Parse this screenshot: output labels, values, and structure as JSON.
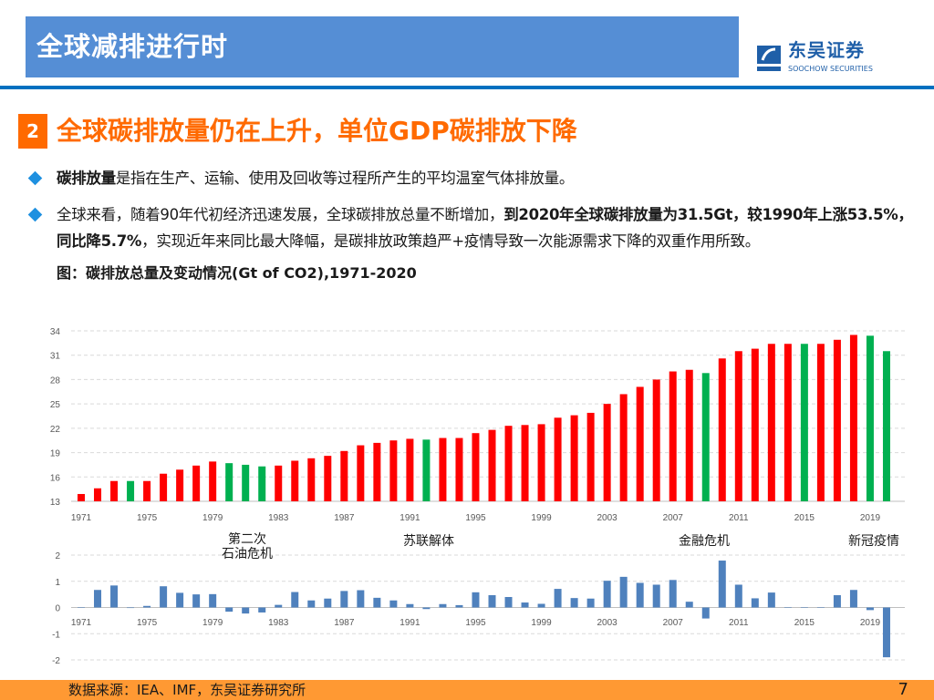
{
  "header": {
    "title": "全球减排进行时",
    "logo_cn": "东吴证券",
    "logo_en": "SOOCHOW SECURITIES"
  },
  "section": {
    "number": "2",
    "title": "全球碳排放量仍在上升，单位GDP碳排放下降"
  },
  "bullets": [
    {
      "segments": [
        {
          "text": "碳排放量",
          "bold": true
        },
        {
          "text": "是指在生产、运输、使用及回收等过程所产生的平均温室气体排放量。",
          "bold": false
        }
      ]
    },
    {
      "segments": [
        {
          "text": "全球来看，随着90年代初经济迅速发展，全球碳排放总量不断增加，",
          "bold": false
        },
        {
          "text": "到2020年全球碳排放量为31.5Gt，较1990年上涨53.5%，同比降5.7%",
          "bold": true
        },
        {
          "text": "，实现近年来同比最大降幅，是碳排放政策趋严+疫情导致一次能源需求下降的双重作用所致。",
          "bold": false
        }
      ]
    }
  ],
  "caption": "图：碳排放总量及变动情况(Gt of CO2),1971-2020",
  "annotations": [
    {
      "text": "第二次\n石油危机",
      "year": 1980
    },
    {
      "text": "苏联解体",
      "year": 1991
    },
    {
      "text": "金融危机",
      "year": 2009
    },
    {
      "text": "新冠疫情",
      "year": 2019
    }
  ],
  "footer": {
    "source": "数据来源：IEA、IMF，东吴证券研究所",
    "page": "7"
  },
  "colors": {
    "increase": "#ff0000",
    "decrease": "#00b050",
    "change": "#4f81bd",
    "header": "#558ed5",
    "accent": "#ff6a00",
    "footer": "#ff9933"
  },
  "chart_data": [
    {
      "type": "bar",
      "title": "",
      "ylim": [
        13,
        34
      ],
      "yticks": [
        13,
        16,
        19,
        22,
        25,
        28,
        31,
        34
      ],
      "xtick_labels": [
        "1971",
        "1975",
        "1979",
        "1983",
        "1987",
        "1991",
        "1995",
        "1999",
        "2003",
        "2007",
        "2011",
        "2015",
        "2019"
      ],
      "grid": true,
      "x": [
        1971,
        1972,
        1973,
        1974,
        1975,
        1976,
        1977,
        1978,
        1979,
        1980,
        1981,
        1982,
        1983,
        1984,
        1985,
        1986,
        1987,
        1988,
        1989,
        1990,
        1991,
        1992,
        1993,
        1994,
        1995,
        1996,
        1997,
        1998,
        1999,
        2000,
        2001,
        2002,
        2003,
        2004,
        2005,
        2006,
        2007,
        2008,
        2009,
        2010,
        2011,
        2012,
        2013,
        2014,
        2015,
        2016,
        2017,
        2018,
        2019,
        2020
      ],
      "values": [
        13.9,
        14.6,
        15.5,
        15.5,
        15.5,
        16.4,
        16.9,
        17.4,
        17.9,
        17.7,
        17.5,
        17.3,
        17.4,
        18.0,
        18.3,
        18.6,
        19.2,
        19.9,
        20.2,
        20.5,
        20.7,
        20.6,
        20.8,
        20.8,
        21.4,
        21.8,
        22.3,
        22.4,
        22.5,
        23.3,
        23.6,
        23.9,
        25.0,
        26.2,
        27.1,
        28.0,
        29.0,
        29.2,
        28.8,
        30.6,
        31.5,
        31.8,
        32.4,
        32.4,
        32.4,
        32.4,
        32.9,
        33.5,
        33.4,
        31.5
      ],
      "decline_years": [
        1974,
        1980,
        1981,
        1982,
        1992,
        2009,
        2015,
        2019,
        2020
      ]
    },
    {
      "type": "bar",
      "title": "",
      "ylim": [
        -2,
        2
      ],
      "yticks": [
        -2,
        -1,
        0,
        1,
        2
      ],
      "xtick_labels": [
        "1971",
        "1975",
        "1979",
        "1983",
        "1987",
        "1991",
        "1995",
        "1999",
        "2003",
        "2007",
        "2011",
        "2015",
        "2019"
      ],
      "grid": true,
      "x": [
        1971,
        1972,
        1973,
        1974,
        1975,
        1976,
        1977,
        1978,
        1979,
        1980,
        1981,
        1982,
        1983,
        1984,
        1985,
        1986,
        1987,
        1988,
        1989,
        1990,
        1991,
        1992,
        1993,
        1994,
        1995,
        1996,
        1997,
        1998,
        1999,
        2000,
        2001,
        2002,
        2003,
        2004,
        2005,
        2006,
        2007,
        2008,
        2009,
        2010,
        2011,
        2012,
        2013,
        2014,
        2015,
        2016,
        2017,
        2018,
        2019,
        2020
      ],
      "values": [
        0,
        0.67,
        0.84,
        -0.02,
        0.06,
        0.81,
        0.56,
        0.5,
        0.51,
        -0.16,
        -0.23,
        -0.19,
        0.1,
        0.59,
        0.27,
        0.34,
        0.63,
        0.66,
        0.37,
        0.27,
        0.13,
        -0.06,
        0.13,
        0.09,
        0.58,
        0.47,
        0.4,
        0.19,
        0.14,
        0.71,
        0.36,
        0.34,
        1.02,
        1.17,
        0.94,
        0.87,
        1.05,
        0.22,
        -0.42,
        1.79,
        0.87,
        0.35,
        0.57,
        0.01,
        -0.01,
        0,
        0.47,
        0.67,
        -0.1,
        -1.9
      ]
    }
  ]
}
